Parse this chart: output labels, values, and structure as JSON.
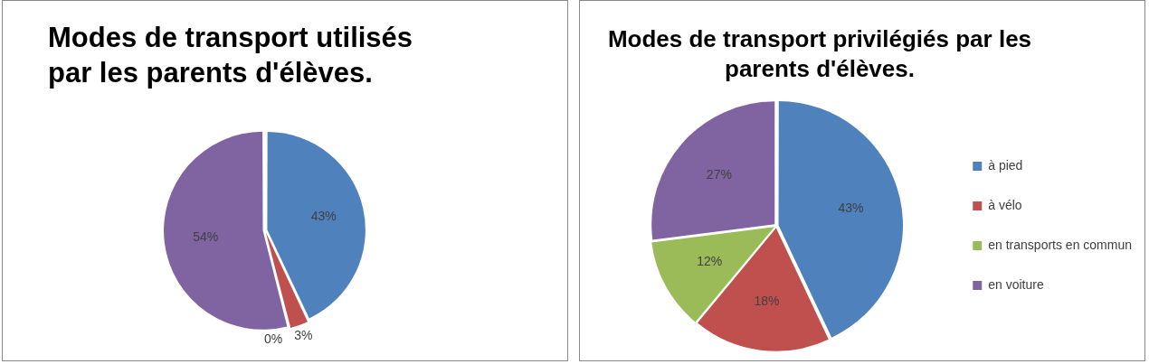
{
  "chart_data": [
    {
      "type": "pie",
      "title": "Modes de transport utilisés par les parents d'élèves.",
      "categories": [
        null,
        null,
        null,
        null
      ],
      "values": [
        43,
        3,
        0,
        54
      ],
      "value_labels": [
        "43%",
        "3%",
        "0%",
        "54%"
      ],
      "colors": [
        "#4f81bd",
        "#c0504d",
        "#9bbb59",
        "#8064a2"
      ]
    },
    {
      "type": "pie",
      "title": "Modes de transport privilégiés par les parents d'élèves.",
      "categories": [
        "à pied",
        "à vélo",
        "en transports en commun",
        "en voiture"
      ],
      "values": [
        43,
        18,
        12,
        27
      ],
      "value_labels": [
        "43%",
        "18%",
        "12%",
        "27%"
      ],
      "colors": [
        "#4f81bd",
        "#c0504d",
        "#9bbb59",
        "#8064a2"
      ],
      "legend": "right"
    }
  ]
}
